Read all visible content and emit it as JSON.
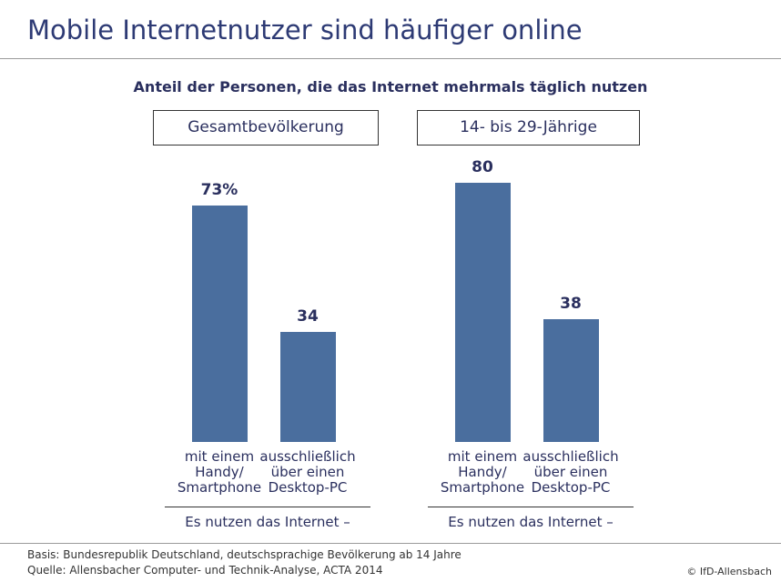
{
  "title": "Mobile Internetnutzer sind häufiger online",
  "colors": {
    "bar": "#4a6e9e",
    "text": "#2a2f5e"
  },
  "chart_data": {
    "type": "bar",
    "subtitle": "Anteil der Personen, die das Internet mehrmals täglich nutzen",
    "panels": [
      {
        "title": "Gesamtbevölkerung",
        "categories": [
          "mit einem\nHandy/\nSmartphone",
          "ausschließlich\nüber einen\nDesktop-PC"
        ],
        "values": [
          73,
          34
        ],
        "value_labels": [
          "73%",
          "34"
        ],
        "group_label": "Es nutzen das Internet –"
      },
      {
        "title": "14- bis 29-Jährige",
        "categories": [
          "mit einem\nHandy/\nSmartphone",
          "ausschließlich\nüber einen\nDesktop-PC"
        ],
        "values": [
          80,
          38
        ],
        "value_labels": [
          "80",
          "38"
        ],
        "group_label": "Es nutzen das Internet –"
      }
    ],
    "ylim": [
      0,
      100
    ]
  },
  "footer": {
    "basis": "Basis: Bundesrepublik Deutschland, deutschsprachige Bevölkerung ab 14 Jahre",
    "source": "Quelle: Allensbacher Computer- und Technik-Analyse, ACTA 2014",
    "copyright": "© IfD-Allensbach"
  }
}
